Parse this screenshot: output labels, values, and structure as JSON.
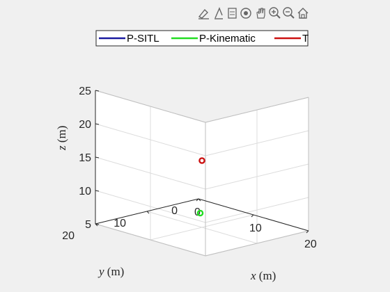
{
  "toolbar": {
    "icons": [
      "brush-icon",
      "data-tips-icon",
      "data-cursor-icon",
      "rotate-3d-icon",
      "pan-icon",
      "zoom-in-icon",
      "zoom-out-icon",
      "home-icon"
    ]
  },
  "chart_data": {
    "type": "scatter3d",
    "title": "",
    "xlabel": "x",
    "ylabel": "y",
    "zlabel": "z",
    "xunit": " (m)",
    "yunit": " (m)",
    "zunit": " (m)",
    "xlim": [
      0,
      20
    ],
    "ylim": [
      0,
      20
    ],
    "zlim": [
      5,
      25
    ],
    "xticks": [
      "0",
      "10",
      "20"
    ],
    "yticks": [
      "0",
      "10",
      "20"
    ],
    "zticks": [
      "5",
      "10",
      "15",
      "20",
      "25"
    ],
    "grid": true,
    "legend_position": "top",
    "colors": {
      "P-SITL": "#1a1aa0",
      "P-Kinematic": "#22dd22",
      "T": "#cc1111"
    },
    "series": [
      {
        "name": "P-SITL",
        "color": "#1a1aa0",
        "points": []
      },
      {
        "name": "P-Kinematic",
        "color": "#22dd22",
        "points": [
          [
            5,
            5,
            5
          ]
        ]
      },
      {
        "name": "T",
        "color": "#cc1111",
        "points": [
          [
            10,
            10,
            15
          ]
        ]
      }
    ]
  }
}
